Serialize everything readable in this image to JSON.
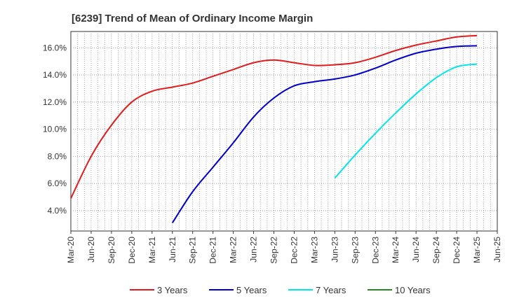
{
  "chart_data": {
    "type": "line",
    "title": "[6239]  Trend of Mean of Ordinary Income Margin",
    "xlabel": "",
    "ylabel": "",
    "ylim": [
      2.5,
      17.2
    ],
    "yticks": [
      4.0,
      6.0,
      8.0,
      10.0,
      12.0,
      14.0,
      16.0
    ],
    "ytick_labels": [
      "4.0%",
      "6.0%",
      "8.0%",
      "10.0%",
      "12.0%",
      "14.0%",
      "16.0%"
    ],
    "x_categories": [
      "Mar-20",
      "Jun-20",
      "Sep-20",
      "Dec-20",
      "Mar-21",
      "Jun-21",
      "Sep-21",
      "Dec-21",
      "Mar-22",
      "Jun-22",
      "Sep-22",
      "Dec-22",
      "Mar-23",
      "Jun-23",
      "Sep-23",
      "Dec-23",
      "Mar-24",
      "Jun-24",
      "Sep-24",
      "Dec-24",
      "Mar-25",
      "Jun-25"
    ],
    "grid": true,
    "legend_position": "bottom",
    "series": [
      {
        "name": "3 Years",
        "color": "#e31a1c",
        "values": [
          4.9,
          8.0,
          10.3,
          12.0,
          12.8,
          13.1,
          13.4,
          13.9,
          14.4,
          14.9,
          15.1,
          14.9,
          14.7,
          14.75,
          14.9,
          15.3,
          15.8,
          16.2,
          16.5,
          16.8,
          16.9,
          null
        ]
      },
      {
        "name": "5 Years",
        "color": "#0000cc",
        "values": [
          null,
          null,
          null,
          null,
          null,
          3.1,
          5.4,
          7.2,
          9.0,
          10.9,
          12.3,
          13.2,
          13.5,
          13.7,
          14.0,
          14.5,
          15.1,
          15.6,
          15.9,
          16.1,
          16.15,
          null
        ]
      },
      {
        "name": "7 Years",
        "color": "#00e5ee",
        "values": [
          null,
          null,
          null,
          null,
          null,
          null,
          null,
          null,
          null,
          null,
          null,
          null,
          null,
          6.4,
          8.1,
          9.7,
          11.2,
          12.6,
          13.8,
          14.6,
          14.8,
          null
        ]
      },
      {
        "name": "10 Years",
        "color": "#228b22",
        "values": [
          null,
          null,
          null,
          null,
          null,
          null,
          null,
          null,
          null,
          null,
          null,
          null,
          null,
          null,
          null,
          null,
          null,
          null,
          null,
          null,
          null,
          null
        ]
      }
    ]
  }
}
